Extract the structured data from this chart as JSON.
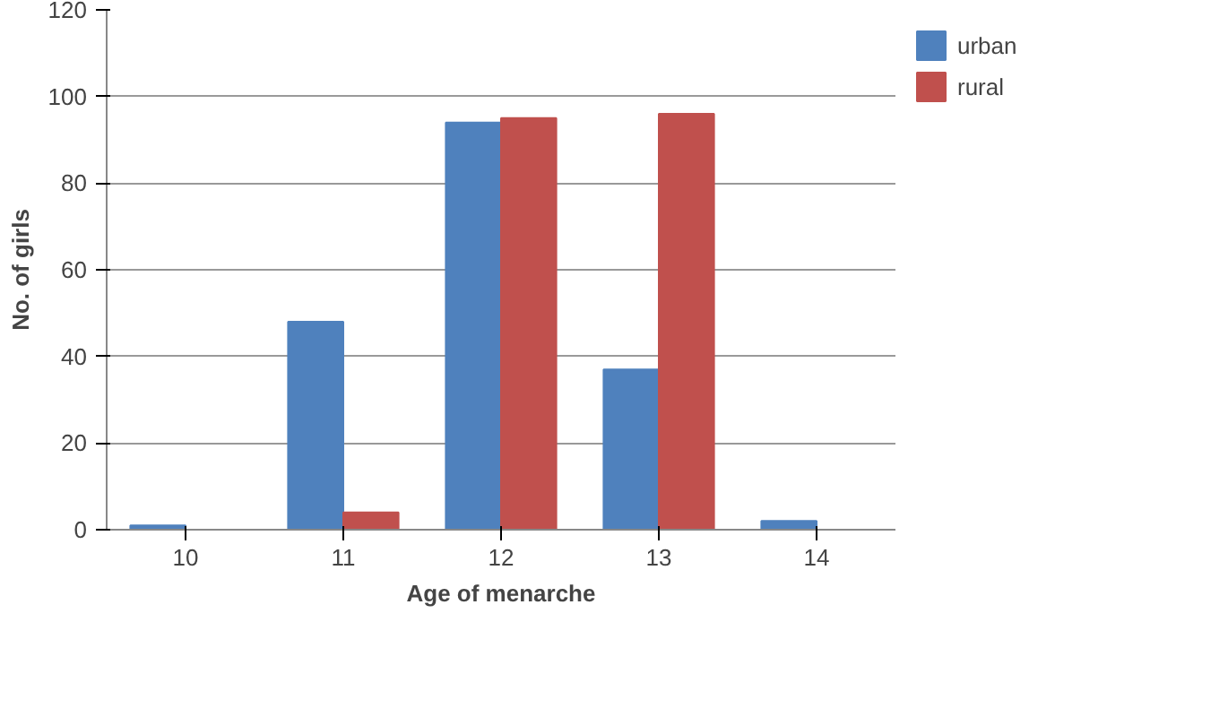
{
  "chart_data": {
    "type": "bar",
    "xlabel": "Age of menarche",
    "ylabel": "No. of girls",
    "categories": [
      "10",
      "11",
      "12",
      "13",
      "14"
    ],
    "series": [
      {
        "name": "urban",
        "color": "#4f81bd",
        "values": [
          1,
          48,
          94,
          37,
          2
        ]
      },
      {
        "name": "rural",
        "color": "#c0504d",
        "values": [
          0,
          4,
          95,
          96,
          0
        ]
      }
    ],
    "ylim": [
      0,
      120
    ],
    "yticks": [
      0,
      20,
      40,
      60,
      80,
      100,
      120
    ],
    "grid": "y",
    "legend": "right"
  }
}
